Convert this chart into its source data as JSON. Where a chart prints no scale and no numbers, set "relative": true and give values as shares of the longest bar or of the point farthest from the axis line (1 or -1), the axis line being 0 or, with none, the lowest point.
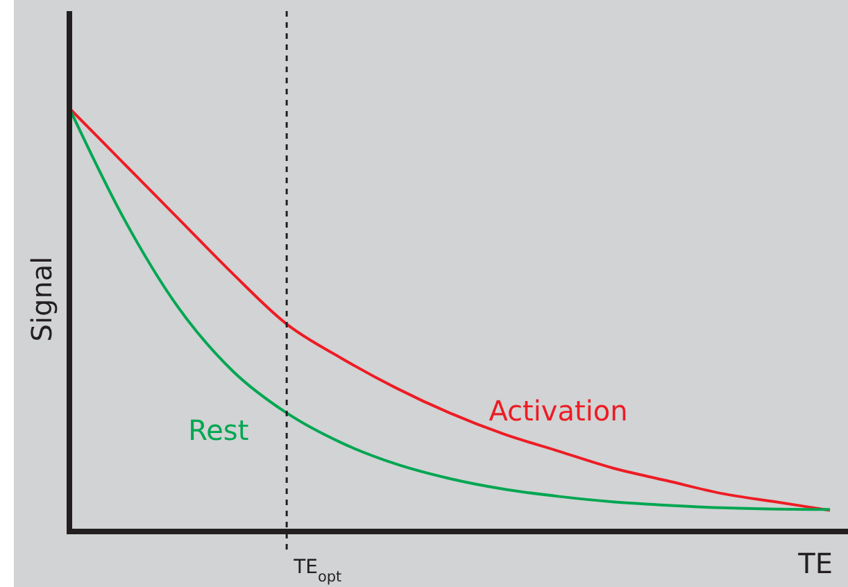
{
  "chart_data": {
    "type": "line",
    "relative": true,
    "xlabel": "TE",
    "ylabel": "Signal",
    "categories": [
      null,
      null,
      null,
      null,
      null,
      null,
      null,
      null,
      null,
      null,
      null,
      null,
      null,
      null,
      null
    ],
    "series": [
      {
        "name": "Activation",
        "color": "#ed1c24",
        "values": [
          1,
          0.87,
          0.74,
          0.61,
          0.49,
          0.41,
          0.34,
          0.28,
          0.23,
          0.19,
          0.15,
          0.12,
          0.09,
          0.07,
          0.05
        ]
      },
      {
        "name": "Rest",
        "color": "#00a651",
        "values": [
          1,
          0.74,
          0.53,
          0.38,
          0.28,
          0.21,
          0.16,
          0.125,
          0.1,
          0.083,
          0.07,
          0.062,
          0.056,
          0.053,
          0.052
        ]
      }
    ],
    "annotations": [
      "TE$_{opt}$"
    ]
  }
}
